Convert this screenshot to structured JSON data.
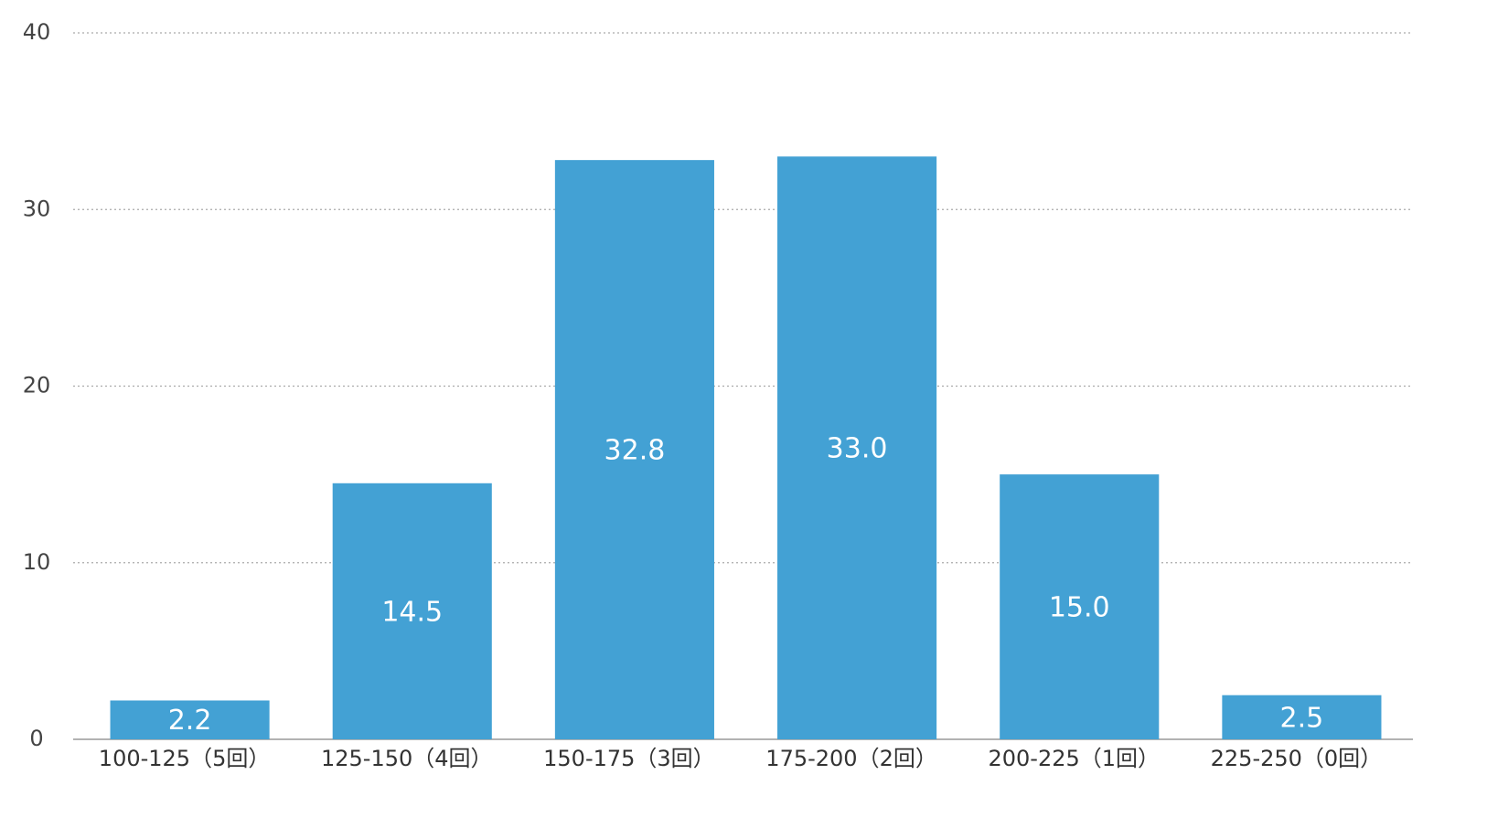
{
  "chart_data": {
    "type": "bar",
    "categories": [
      "100-125（5回）",
      "125-150（4回）",
      "150-175（3回）",
      "175-200（2回）",
      "200-225（1回）",
      "225-250（0回）"
    ],
    "values": [
      2.2,
      14.5,
      32.8,
      33.0,
      15.0,
      2.5
    ],
    "value_labels": [
      "2.2",
      "14.5",
      "32.8",
      "33.0",
      "15.0",
      "2.5"
    ],
    "color": "#43a1d4",
    "ylim": [
      0,
      40
    ],
    "yticks": [
      0,
      10,
      20,
      30,
      40
    ],
    "grid": true
  }
}
